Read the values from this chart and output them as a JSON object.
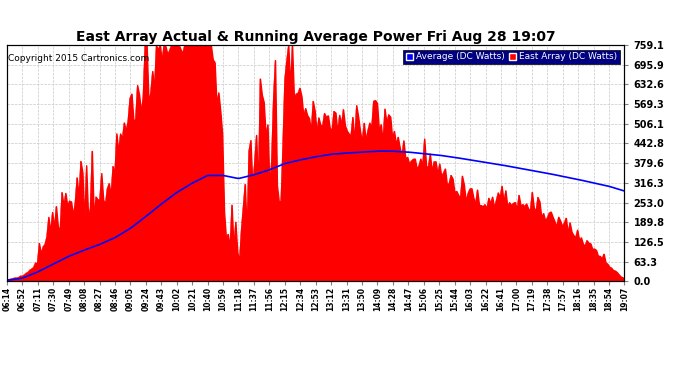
{
  "title": "East Array Actual & Running Average Power Fri Aug 28 19:07",
  "copyright": "Copyright 2015 Cartronics.com",
  "ylabel_right_values": [
    759.1,
    695.9,
    632.6,
    569.3,
    506.1,
    442.8,
    379.6,
    316.3,
    253.0,
    189.8,
    126.5,
    63.3,
    0.0
  ],
  "ymax": 759.1,
  "ymin": 0.0,
  "legend_labels": [
    "Average (DC Watts)",
    "East Array (DC Watts)"
  ],
  "legend_colors": [
    "#0000ff",
    "#ff0000"
  ],
  "background_color": "#ffffff",
  "plot_bg_color": "#ffffff",
  "grid_color": "#c8c8c8",
  "x_tick_labels": [
    "06:14",
    "06:52",
    "07:11",
    "07:30",
    "07:49",
    "08:08",
    "08:27",
    "08:46",
    "09:05",
    "09:24",
    "09:43",
    "10:02",
    "10:21",
    "10:40",
    "10:59",
    "11:18",
    "11:37",
    "11:56",
    "12:15",
    "12:34",
    "12:53",
    "13:12",
    "13:31",
    "13:50",
    "14:09",
    "14:28",
    "14:47",
    "15:06",
    "15:25",
    "15:44",
    "16:03",
    "16:22",
    "16:41",
    "17:00",
    "17:19",
    "17:38",
    "17:57",
    "18:16",
    "18:35",
    "18:54",
    "19:07"
  ],
  "east_array": [
    5,
    15,
    55,
    110,
    155,
    170,
    195,
    280,
    420,
    530,
    640,
    700,
    735,
    748,
    350,
    130,
    580,
    660,
    700,
    480,
    440,
    480,
    450,
    430,
    440,
    435,
    360,
    360,
    340,
    270,
    250,
    230,
    240,
    230,
    210,
    190,
    165,
    130,
    90,
    45,
    5
  ],
  "avg_line": [
    3,
    10,
    30,
    55,
    80,
    100,
    118,
    140,
    170,
    208,
    248,
    285,
    315,
    340,
    340,
    330,
    342,
    358,
    378,
    390,
    400,
    408,
    412,
    415,
    418,
    418,
    415,
    410,
    405,
    398,
    390,
    382,
    374,
    365,
    356,
    347,
    337,
    327,
    316,
    305,
    290
  ]
}
